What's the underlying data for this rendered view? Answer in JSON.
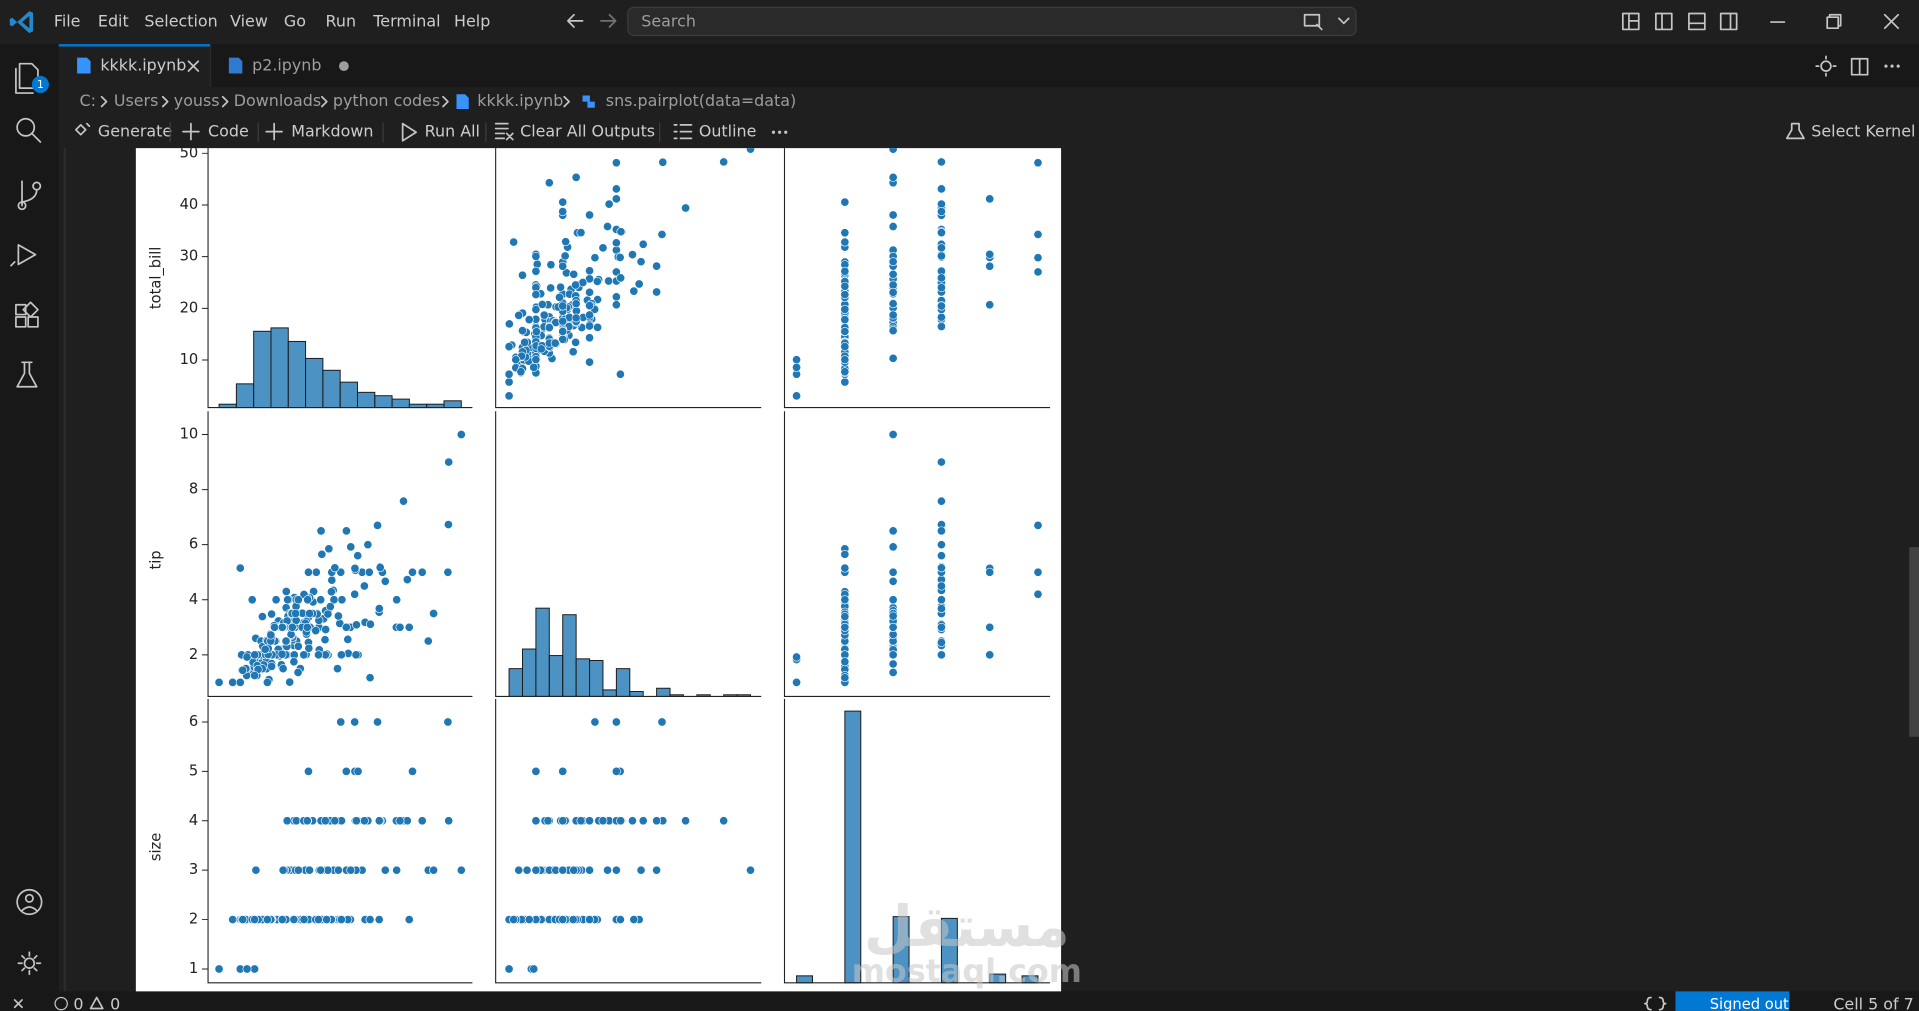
{
  "menu": [
    "File",
    "Edit",
    "Selection",
    "View",
    "Go",
    "Run",
    "Terminal",
    "Help"
  ],
  "search": "Search",
  "activity_badge": 1,
  "tabs": [
    "kkkk.ipynb",
    "p2.ipynb"
  ],
  "breadcrumb": [
    "C:",
    "Users",
    "youss",
    "Downloads",
    "python codes",
    "kkkk.ipynb",
    "sns.pairplot(data=data)"
  ],
  "toolbar": [
    "Generate",
    "Code",
    "Markdown",
    "Run All",
    "Clear All Outputs",
    "Outline"
  ],
  "kernel": "Select Kernel",
  "status": {
    "errors": 0,
    "warnings": 0,
    "account": "Signed out",
    "cell": "Cell 5 of 7"
  },
  "watermark": [
    "مستقل",
    "mostaql.com"
  ],
  "chart_data": {
    "type": "pairplot",
    "color": "#1f77b4",
    "variables": [
      {
        "label": "total_bill",
        "ylim": [
          0.8,
          51
        ],
        "xlim": [
          0.9,
          53
        ],
        "yticks": [
          10,
          20,
          30,
          40,
          50
        ],
        "hist": {
          "bins": [
            3.07,
            6.48,
            9.89,
            13.3,
            16.71,
            20.12,
            23.53,
            26.94,
            30.35,
            33.76,
            37.17,
            40.58,
            43.99,
            47.4,
            50.81
          ],
          "counts": [
            2,
            14,
            45,
            47,
            39,
            29,
            22,
            15,
            9,
            7,
            5,
            2,
            2,
            4
          ],
          "ylim": [
            0,
            153
          ]
        }
      },
      {
        "label": "tip",
        "ylim": [
          0.49,
          10.4
        ],
        "xlim": [
          0.5,
          10.4
        ],
        "yticks": [
          2,
          4,
          6,
          8,
          10
        ],
        "hist": {
          "bins": [
            1,
            1.5,
            2,
            2.5,
            3,
            3.5,
            4,
            4.5,
            5,
            5.5,
            6,
            6.5,
            7,
            7.5,
            8,
            8.5,
            9,
            9.5,
            10
          ],
          "counts": [
            17,
            29,
            54,
            25,
            50,
            23,
            22,
            4,
            17,
            3,
            0,
            5,
            1,
            0,
            1,
            0,
            1,
            1
          ],
          "ylim": [
            0,
            167
          ]
        }
      },
      {
        "label": "size",
        "ylim": [
          0.72,
          6.22
        ],
        "xlim": [
          0.75,
          6.25
        ],
        "yticks": [
          1,
          2,
          3,
          4,
          5,
          6
        ],
        "hist": {
          "bins": [
            1,
            1.33,
            1.67,
            2,
            2.33,
            2.67,
            3,
            3.33,
            3.67,
            4,
            4.33,
            4.67,
            5,
            5.33,
            5.67,
            6
          ],
          "counts": [
            4,
            0,
            0,
            156,
            0,
            0,
            38,
            0,
            0,
            37,
            0,
            0,
            5,
            0,
            4
          ],
          "ylim": [
            0,
            156
          ]
        }
      }
    ],
    "rows": [
      [
        16.99,
        1.01,
        2
      ],
      [
        10.34,
        1.66,
        3
      ],
      [
        21.01,
        3.5,
        3
      ],
      [
        23.68,
        3.31,
        2
      ],
      [
        24.59,
        3.61,
        4
      ],
      [
        25.29,
        4.71,
        4
      ],
      [
        8.77,
        2.0,
        2
      ],
      [
        26.88,
        3.12,
        4
      ],
      [
        15.04,
        1.96,
        2
      ],
      [
        14.78,
        3.23,
        2
      ],
      [
        10.27,
        1.71,
        2
      ],
      [
        35.26,
        5.0,
        4
      ],
      [
        15.42,
        1.57,
        2
      ],
      [
        18.43,
        3.0,
        4
      ],
      [
        14.83,
        3.02,
        2
      ],
      [
        21.58,
        3.92,
        2
      ],
      [
        10.33,
        1.67,
        3
      ],
      [
        16.29,
        3.71,
        3
      ],
      [
        16.97,
        3.5,
        3
      ],
      [
        20.65,
        3.35,
        3
      ],
      [
        17.92,
        4.08,
        2
      ],
      [
        20.29,
        2.75,
        2
      ],
      [
        15.77,
        2.23,
        2
      ],
      [
        39.42,
        7.58,
        4
      ],
      [
        19.82,
        3.18,
        2
      ],
      [
        17.81,
        2.34,
        4
      ],
      [
        13.37,
        2.0,
        2
      ],
      [
        12.69,
        2.0,
        2
      ],
      [
        21.7,
        4.3,
        2
      ],
      [
        19.65,
        3.0,
        2
      ],
      [
        9.55,
        1.45,
        2
      ],
      [
        18.35,
        2.5,
        4
      ],
      [
        15.06,
        3.0,
        2
      ],
      [
        20.69,
        2.45,
        4
      ],
      [
        17.78,
        3.27,
        2
      ],
      [
        24.06,
        3.6,
        3
      ],
      [
        16.31,
        2.0,
        3
      ],
      [
        16.93,
        3.07,
        3
      ],
      [
        18.69,
        2.31,
        3
      ],
      [
        31.27,
        5.0,
        3
      ],
      [
        16.04,
        2.24,
        3
      ],
      [
        17.46,
        2.54,
        2
      ],
      [
        13.94,
        3.06,
        2
      ],
      [
        9.68,
        1.32,
        2
      ],
      [
        30.4,
        5.6,
        4
      ],
      [
        18.29,
        3.0,
        2
      ],
      [
        22.23,
        5.0,
        2
      ],
      [
        32.4,
        6.0,
        4
      ],
      [
        28.55,
        2.05,
        3
      ],
      [
        18.04,
        3.0,
        2
      ],
      [
        12.54,
        2.5,
        2
      ],
      [
        10.29,
        2.6,
        2
      ],
      [
        34.81,
        5.2,
        4
      ],
      [
        9.94,
        1.56,
        2
      ],
      [
        25.56,
        4.34,
        4
      ],
      [
        19.49,
        3.51,
        2
      ],
      [
        38.01,
        3.0,
        4
      ],
      [
        26.41,
        1.5,
        2
      ],
      [
        11.24,
        1.76,
        2
      ],
      [
        48.27,
        6.73,
        4
      ],
      [
        20.29,
        3.21,
        2
      ],
      [
        13.81,
        2.0,
        2
      ],
      [
        11.02,
        1.98,
        2
      ],
      [
        18.29,
        3.76,
        4
      ],
      [
        17.59,
        2.64,
        3
      ],
      [
        20.08,
        3.15,
        3
      ],
      [
        16.45,
        2.47,
        2
      ],
      [
        3.07,
        1.0,
        1
      ],
      [
        20.23,
        2.01,
        2
      ],
      [
        15.01,
        2.09,
        2
      ],
      [
        12.02,
        1.97,
        2
      ],
      [
        17.07,
        3.0,
        3
      ],
      [
        26.86,
        3.14,
        2
      ],
      [
        25.28,
        5.0,
        2
      ],
      [
        14.73,
        2.2,
        2
      ],
      [
        10.51,
        1.25,
        2
      ],
      [
        17.92,
        3.08,
        2
      ],
      [
        27.2,
        4.0,
        4
      ],
      [
        22.76,
        3.0,
        2
      ],
      [
        17.29,
        2.71,
        2
      ],
      [
        19.44,
        3.0,
        2
      ],
      [
        16.66,
        3.4,
        2
      ],
      [
        10.07,
        1.83,
        1
      ],
      [
        32.68,
        5.0,
        2
      ],
      [
        15.98,
        2.03,
        2
      ],
      [
        34.83,
        5.17,
        4
      ],
      [
        13.03,
        2.0,
        2
      ],
      [
        18.28,
        4.0,
        2
      ],
      [
        24.71,
        5.85,
        2
      ],
      [
        21.16,
        3.0,
        2
      ],
      [
        28.97,
        3.0,
        2
      ],
      [
        22.49,
        3.5,
        2
      ],
      [
        5.75,
        1.0,
        2
      ],
      [
        16.32,
        4.3,
        2
      ],
      [
        22.75,
        3.25,
        2
      ],
      [
        40.17,
        4.73,
        4
      ],
      [
        27.28,
        4.0,
        2
      ],
      [
        12.03,
        1.5,
        2
      ],
      [
        21.01,
        3.0,
        2
      ],
      [
        12.46,
        1.5,
        2
      ],
      [
        11.35,
        2.5,
        2
      ],
      [
        15.38,
        3.0,
        2
      ],
      [
        44.3,
        2.5,
        3
      ],
      [
        22.42,
        3.48,
        2
      ],
      [
        20.92,
        4.08,
        2
      ],
      [
        15.36,
        1.64,
        2
      ],
      [
        20.49,
        4.06,
        2
      ],
      [
        25.21,
        4.29,
        2
      ],
      [
        18.24,
        3.76,
        2
      ],
      [
        14.31,
        4.0,
        2
      ],
      [
        14.0,
        3.0,
        2
      ],
      [
        7.25,
        1.0,
        1
      ],
      [
        38.07,
        4.0,
        3
      ],
      [
        23.95,
        2.55,
        2
      ],
      [
        25.71,
        4.0,
        3
      ],
      [
        17.31,
        3.5,
        2
      ],
      [
        29.93,
        5.07,
        4
      ],
      [
        10.65,
        1.5,
        2
      ],
      [
        12.43,
        1.8,
        2
      ],
      [
        24.08,
        2.92,
        4
      ],
      [
        11.69,
        2.31,
        2
      ],
      [
        13.42,
        1.68,
        2
      ],
      [
        14.26,
        2.5,
        2
      ],
      [
        15.95,
        2.0,
        2
      ],
      [
        12.48,
        2.52,
        2
      ],
      [
        29.8,
        4.2,
        6
      ],
      [
        8.52,
        1.48,
        2
      ],
      [
        14.52,
        2.0,
        2
      ],
      [
        11.38,
        2.0,
        2
      ],
      [
        22.82,
        2.18,
        3
      ],
      [
        19.08,
        1.5,
        2
      ],
      [
        20.27,
        2.83,
        2
      ],
      [
        11.17,
        1.5,
        2
      ],
      [
        12.26,
        2.0,
        2
      ],
      [
        18.26,
        3.25,
        2
      ],
      [
        8.51,
        1.25,
        2
      ],
      [
        10.33,
        2.0,
        2
      ],
      [
        14.15,
        2.0,
        2
      ],
      [
        16.0,
        2.0,
        2
      ],
      [
        13.16,
        2.75,
        2
      ],
      [
        17.47,
        3.5,
        2
      ],
      [
        34.3,
        6.7,
        6
      ],
      [
        41.19,
        5.0,
        5
      ],
      [
        27.05,
        5.0,
        6
      ],
      [
        16.43,
        2.3,
        2
      ],
      [
        8.35,
        1.5,
        2
      ],
      [
        18.64,
        1.36,
        3
      ],
      [
        11.87,
        1.63,
        2
      ],
      [
        9.78,
        1.73,
        2
      ],
      [
        7.51,
        2.0,
        2
      ],
      [
        14.07,
        2.5,
        2
      ],
      [
        13.13,
        2.0,
        2
      ],
      [
        17.26,
        2.74,
        3
      ],
      [
        24.55,
        2.0,
        4
      ],
      [
        19.77,
        2.0,
        4
      ],
      [
        29.85,
        5.14,
        5
      ],
      [
        48.17,
        5.0,
        6
      ],
      [
        25.0,
        3.75,
        4
      ],
      [
        13.39,
        2.61,
        2
      ],
      [
        16.49,
        2.0,
        4
      ],
      [
        21.5,
        3.5,
        4
      ],
      [
        12.66,
        2.5,
        2
      ],
      [
        16.21,
        2.0,
        3
      ],
      [
        17.51,
        3.0,
        2
      ],
      [
        24.52,
        3.48,
        3
      ],
      [
        20.76,
        2.24,
        2
      ],
      [
        31.71,
        4.5,
        4
      ],
      [
        10.59,
        1.61,
        2
      ],
      [
        10.63,
        2.0,
        2
      ],
      [
        50.81,
        10.0,
        3
      ],
      [
        15.81,
        3.16,
        2
      ],
      [
        7.25,
        5.15,
        2
      ],
      [
        31.85,
        3.18,
        2
      ],
      [
        16.82,
        4.0,
        2
      ],
      [
        32.9,
        3.11,
        2
      ],
      [
        17.89,
        2.0,
        2
      ],
      [
        14.48,
        2.0,
        2
      ],
      [
        9.6,
        4.0,
        2
      ],
      [
        34.63,
        3.55,
        2
      ],
      [
        34.65,
        3.68,
        4
      ],
      [
        23.33,
        5.65,
        2
      ],
      [
        45.35,
        3.5,
        3
      ],
      [
        23.17,
        6.5,
        4
      ],
      [
        40.55,
        3.0,
        2
      ],
      [
        20.69,
        5.0,
        5
      ],
      [
        20.9,
        3.5,
        3
      ],
      [
        30.46,
        2.0,
        5
      ],
      [
        18.15,
        3.5,
        3
      ],
      [
        23.1,
        4.0,
        3
      ],
      [
        15.69,
        1.5,
        2
      ],
      [
        19.81,
        4.19,
        2
      ],
      [
        28.44,
        2.56,
        2
      ],
      [
        15.48,
        2.02,
        2
      ],
      [
        16.58,
        4.0,
        2
      ],
      [
        7.56,
        1.44,
        2
      ],
      [
        43.11,
        5.0,
        4
      ],
      [
        13.0,
        2.0,
        2
      ],
      [
        13.51,
        2.0,
        2
      ],
      [
        18.71,
        4.0,
        3
      ],
      [
        12.74,
        2.01,
        2
      ],
      [
        16.4,
        2.5,
        2
      ],
      [
        20.53,
        4.0,
        4
      ],
      [
        16.47,
        3.23,
        3
      ],
      [
        26.59,
        3.41,
        3
      ],
      [
        38.73,
        3.0,
        4
      ],
      [
        24.27,
        2.03,
        2
      ],
      [
        12.76,
        2.23,
        2
      ],
      [
        30.06,
        2.0,
        3
      ],
      [
        25.89,
        5.16,
        4
      ],
      [
        48.33,
        9.0,
        4
      ],
      [
        13.27,
        2.5,
        2
      ],
      [
        28.17,
        6.5,
        3
      ],
      [
        12.9,
        1.1,
        2
      ],
      [
        28.15,
        3.0,
        5
      ],
      [
        11.59,
        1.5,
        2
      ],
      [
        7.74,
        1.44,
        2
      ],
      [
        30.14,
        3.09,
        4
      ],
      [
        12.16,
        2.2,
        2
      ],
      [
        13.42,
        3.48,
        2
      ],
      [
        8.58,
        1.92,
        1
      ],
      [
        15.98,
        3.0,
        3
      ],
      [
        13.42,
        1.58,
        2
      ],
      [
        16.27,
        2.5,
        2
      ],
      [
        10.09,
        2.0,
        2
      ],
      [
        20.45,
        3.0,
        4
      ],
      [
        13.28,
        2.72,
        2
      ],
      [
        22.12,
        2.88,
        2
      ],
      [
        24.01,
        2.0,
        4
      ],
      [
        15.69,
        3.0,
        3
      ],
      [
        11.61,
        3.39,
        2
      ],
      [
        10.77,
        1.47,
        2
      ],
      [
        15.53,
        3.0,
        2
      ],
      [
        10.07,
        1.25,
        2
      ],
      [
        12.6,
        1.0,
        2
      ],
      [
        32.83,
        1.17,
        2
      ],
      [
        35.83,
        4.67,
        3
      ],
      [
        29.03,
        5.92,
        3
      ],
      [
        27.18,
        2.0,
        2
      ],
      [
        22.67,
        2.0,
        2
      ],
      [
        17.82,
        1.75,
        2
      ]
    ]
  }
}
